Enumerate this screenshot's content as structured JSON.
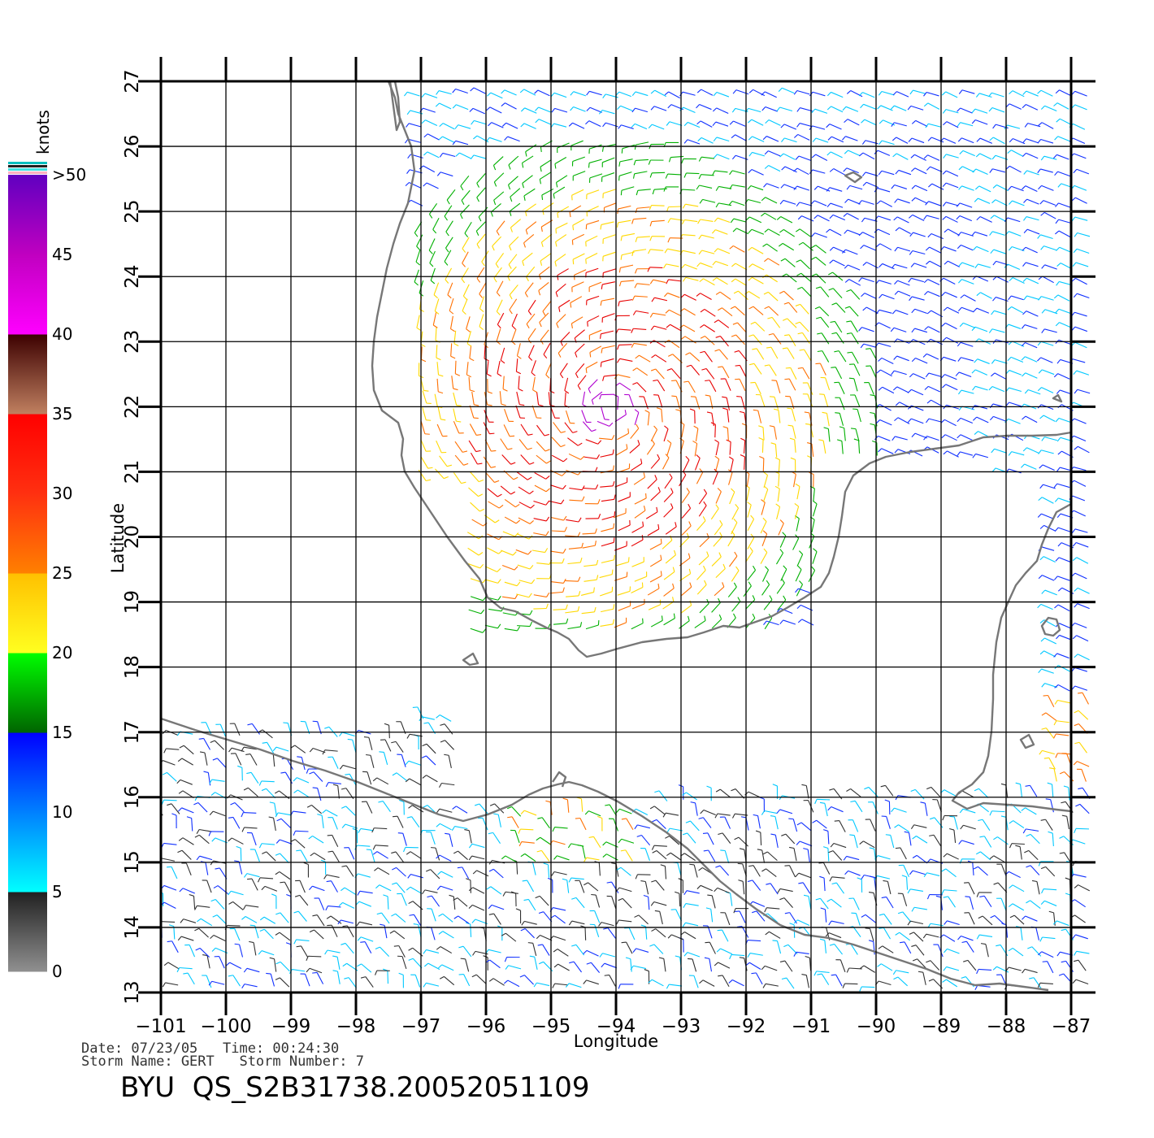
{
  "chart_data": {
    "type": "wind-vector-map",
    "xlabel": "Longitude",
    "ylabel": "Latitude",
    "xlim": [
      -101,
      -87
    ],
    "ylim": [
      13,
      27
    ],
    "x_ticks": [
      "−101",
      "−100",
      "−99",
      "−98",
      "−97",
      "−96",
      "−95",
      "−94",
      "−93",
      "−92",
      "−91",
      "−90",
      "−89",
      "−88",
      "−87"
    ],
    "y_ticks": [
      "13",
      "14",
      "15",
      "16",
      "17",
      "18",
      "19",
      "20",
      "21",
      "22",
      "23",
      "24",
      "25",
      "26",
      "27"
    ],
    "grid": true,
    "colorbar": {
      "unit_label": "knots",
      "labels": [
        "0",
        "5",
        "10",
        "15",
        "20",
        "25",
        "30",
        "35",
        "40",
        "45",
        ">50"
      ],
      "bands": [
        {
          "from": 0,
          "to": 5,
          "colors": [
            "#909090",
            "#202020"
          ]
        },
        {
          "from": 5,
          "to": 10,
          "colors": [
            "#00ffff",
            "#0080ff"
          ]
        },
        {
          "from": 10,
          "to": 15,
          "colors": [
            "#0080ff",
            "#0000ff"
          ]
        },
        {
          "from": 15,
          "to": 20,
          "colors": [
            "#006400",
            "#00ff00"
          ]
        },
        {
          "from": 20,
          "to": 25,
          "colors": [
            "#ffff20",
            "#ffc000"
          ]
        },
        {
          "from": 25,
          "to": 30,
          "colors": [
            "#ff8000",
            "#ff3010"
          ]
        },
        {
          "from": 30,
          "to": 35,
          "colors": [
            "#ff3010",
            "#ff0000"
          ]
        },
        {
          "from": 35,
          "to": 40,
          "colors": [
            "#c08060",
            "#3c0000"
          ]
        },
        {
          "from": 40,
          "to": 45,
          "colors": [
            "#ff00ff",
            "#c000c0"
          ]
        },
        {
          "from": 45,
          "to": 50,
          "colors": [
            "#c000c0",
            "#6000c0"
          ]
        }
      ]
    },
    "storm_center": {
      "lon": -94.1,
      "lat": 22.0
    },
    "wind_colors": {
      "calm": "#303030",
      "light": "#00c8ff",
      "moderate": "#1030ff",
      "fresh": "#00b000",
      "strong": "#ffd800",
      "gale": "#ff7000",
      "storm": "#e80000",
      "severe": "#b000d0"
    }
  },
  "info": {
    "line1": "Date: 07/23/05   Time: 00:24:30",
    "line2": "Storm Name: GERT   Storm Number: 7",
    "file_id": "BYU  QS_S2B31738.20052051109"
  }
}
